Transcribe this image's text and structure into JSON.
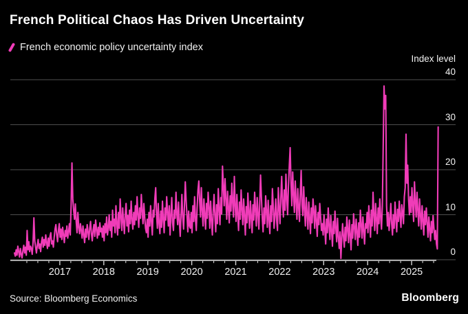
{
  "title": "French Political Chaos Has Driven Uncertainty",
  "legend": {
    "label": "French economic policy uncertainty index"
  },
  "y_axis": {
    "unit_label": "Index level"
  },
  "footer": {
    "source": "Source: Bloomberg Economics",
    "brand": "Bloomberg"
  },
  "colors": {
    "background": "#000000",
    "accent_pink": "#F03CB8",
    "gridline": "#4f4f4f",
    "axis": "#d6d6d6",
    "text": "#ffffff"
  },
  "chart_data": {
    "type": "line",
    "series_name": "French economic policy uncertainty index",
    "ylabel": "Index level",
    "ylim": [
      0,
      40
    ],
    "yticks": [
      0,
      10,
      20,
      30,
      40
    ],
    "year_ticks": [
      2017,
      2018,
      2019,
      2020,
      2021,
      2022,
      2023,
      2024,
      2025
    ],
    "x_start_year": 2016,
    "x_end_year_approx": 2025.65,
    "frequency": "weekly",
    "grid": true,
    "legend_position": "top-left",
    "values": [
      1.5,
      0.8,
      2.2,
      1.0,
      3.0,
      1.8,
      0.6,
      2.5,
      1.2,
      0.4,
      2.0,
      3.2,
      1.5,
      2.8,
      1.0,
      6.5,
      2.2,
      4.0,
      1.8,
      3.0,
      2.5,
      1.2,
      3.8,
      9.3,
      4.2,
      2.8,
      1.5,
      3.2,
      4.5,
      2.5,
      3.5,
      1.8,
      4.0,
      5.0,
      2.8,
      4.5,
      3.2,
      5.5,
      3.8,
      2.5,
      4.8,
      3.0,
      5.2,
      6.0,
      3.5,
      4.2,
      2.8,
      5.0,
      6.8,
      7.8,
      5.5,
      4.0,
      6.5,
      8.0,
      5.0,
      6.8,
      4.5,
      7.2,
      5.5,
      3.8,
      6.5,
      5.2,
      7.5,
      4.8,
      6.2,
      8.0,
      5.5,
      12.0,
      21.5,
      13.5,
      11.0,
      9.0,
      12.4,
      8.5,
      6.0,
      10.5,
      7.2,
      5.8,
      8.0,
      6.5,
      4.8,
      7.5,
      5.5,
      3.8,
      6.8,
      5.0,
      7.8,
      6.2,
      4.5,
      7.0,
      8.5,
      5.8,
      4.2,
      6.5,
      7.8,
      5.2,
      8.8,
      6.8,
      4.8,
      7.2,
      5.5,
      8.2,
      6.2,
      7.0,
      5.0,
      7.5,
      4.2,
      8.0,
      6.0,
      9.5,
      5.5,
      7.0,
      10.0,
      6.5,
      8.5,
      5.0,
      11.0,
      7.5,
      9.0,
      6.0,
      12.0,
      8.0,
      5.5,
      10.5,
      7.0,
      13.5,
      9.5,
      6.5,
      11.5,
      8.5,
      5.8,
      10.0,
      12.5,
      7.5,
      9.8,
      6.2,
      11.0,
      8.0,
      13.0,
      9.0,
      6.8,
      10.5,
      7.8,
      12.0,
      8.8,
      14.0,
      10.0,
      7.2,
      11.5,
      9.2,
      14.5,
      10.8,
      8.0,
      12.5,
      9.5,
      7.0,
      6.0,
      9.0,
      5.0,
      10.5,
      7.5,
      12.0,
      8.5,
      5.5,
      11.0,
      9.5,
      13.5,
      16.0,
      10.0,
      7.0,
      12.5,
      8.0,
      5.8,
      10.8,
      7.2,
      13.0,
      9.0,
      6.0,
      11.5,
      8.8,
      14.0,
      10.5,
      7.5,
      12.0,
      5.5,
      9.8,
      13.8,
      8.2,
      6.5,
      11.0,
      9.2,
      15.0,
      10.2,
      7.8,
      12.8,
      8.5,
      5.2,
      10.0,
      14.5,
      9.5,
      6.8,
      11.8,
      17.3,
      13.2,
      9.8,
      6.2,
      10.8,
      7.5,
      7.0,
      10.5,
      6.0,
      12.0,
      8.5,
      14.0,
      9.0,
      6.5,
      11.5,
      15.5,
      17.5,
      13.0,
      9.5,
      16.0,
      11.0,
      7.5,
      13.5,
      10.0,
      6.8,
      12.5,
      9.2,
      15.0,
      11.8,
      7.0,
      13.0,
      8.8,
      5.5,
      10.8,
      14.5,
      9.8,
      6.2,
      12.2,
      8.0,
      15.8,
      11.2,
      7.8,
      13.8,
      10.2,
      20.8,
      16.5,
      12.0,
      18.0,
      13.5,
      9.0,
      15.2,
      11.5,
      8.2,
      14.2,
      10.8,
      17.0,
      12.8,
      9.5,
      18.5,
      12.0,
      8.5,
      14.5,
      10.0,
      6.5,
      12.8,
      9.0,
      15.5,
      11.2,
      7.8,
      13.5,
      9.8,
      5.5,
      11.8,
      8.2,
      14.8,
      10.5,
      7.0,
      13.0,
      9.5,
      6.0,
      12.2,
      8.8,
      15.0,
      11.0,
      7.5,
      13.8,
      10.2,
      6.8,
      12.5,
      18.8,
      14.0,
      9.2,
      6.2,
      11.5,
      8.0,
      14.2,
      10.8,
      7.2,
      13.2,
      9.0,
      5.8,
      12.0,
      8.5,
      15.8,
      11.8,
      7.0,
      10.0,
      13.5,
      8.8,
      6.5,
      16.0,
      11.5,
      8.0,
      14.0,
      18.5,
      12.5,
      9.5,
      15.5,
      11.0,
      19.0,
      13.5,
      10.0,
      16.5,
      21.0,
      24.9,
      17.0,
      12.0,
      19.5,
      14.5,
      10.5,
      17.5,
      13.0,
      9.0,
      15.8,
      11.8,
      8.5,
      14.8,
      19.8,
      12.2,
      9.8,
      16.2,
      11.2,
      7.5,
      13.8,
      10.2,
      6.8,
      12.8,
      9.2,
      5.8,
      11.5,
      8.2,
      13.5,
      10.8,
      7.0,
      12.0,
      8.8,
      5.2,
      10.5,
      7.8,
      12.5,
      9.5,
      6.5,
      8.0,
      5.5,
      10.0,
      6.8,
      3.5,
      9.0,
      6.0,
      11.5,
      7.5,
      4.5,
      9.8,
      6.5,
      3.0,
      8.5,
      5.8,
      10.8,
      7.0,
      4.0,
      9.2,
      5.0,
      2.5,
      6.2,
      0.3,
      4.8,
      8.0,
      5.2,
      2.8,
      7.2,
      4.2,
      9.5,
      6.8,
      3.8,
      8.8,
      5.5,
      2.2,
      7.8,
      4.8,
      10.2,
      7.2,
      4.5,
      9.0,
      6.2,
      3.2,
      8.2,
      5.0,
      11.0,
      7.8,
      4.8,
      9.5,
      6.5,
      3.5,
      8.0,
      7.0,
      10.5,
      6.0,
      12.0,
      8.5,
      5.0,
      11.0,
      7.5,
      15.0,
      10.0,
      6.5,
      12.5,
      9.0,
      5.8,
      11.5,
      8.0,
      13.5,
      9.5,
      6.8,
      12.0,
      25.0,
      38.6,
      33.5,
      36.5,
      12.0,
      7.5,
      10.5,
      6.5,
      9.0,
      12.5,
      8.0,
      5.5,
      10.0,
      7.0,
      12.8,
      9.2,
      6.2,
      11.2,
      8.5,
      13.0,
      9.8,
      7.2,
      12.2,
      10.5,
      8.0,
      14.0,
      16.0,
      27.9,
      17.0,
      21.0,
      13.5,
      10.0,
      14.0,
      10.5,
      16.0,
      12.0,
      8.5,
      17.3,
      13.0,
      9.5,
      15.0,
      11.0,
      7.5,
      13.5,
      10.0,
      6.8,
      12.0,
      8.8,
      5.5,
      10.8,
      7.8,
      11.5,
      8.2,
      5.0,
      9.5,
      6.8,
      4.2,
      8.5,
      6.0,
      9.8,
      7.0,
      4.5,
      6.5,
      3.5,
      2.4,
      29.5
    ]
  }
}
